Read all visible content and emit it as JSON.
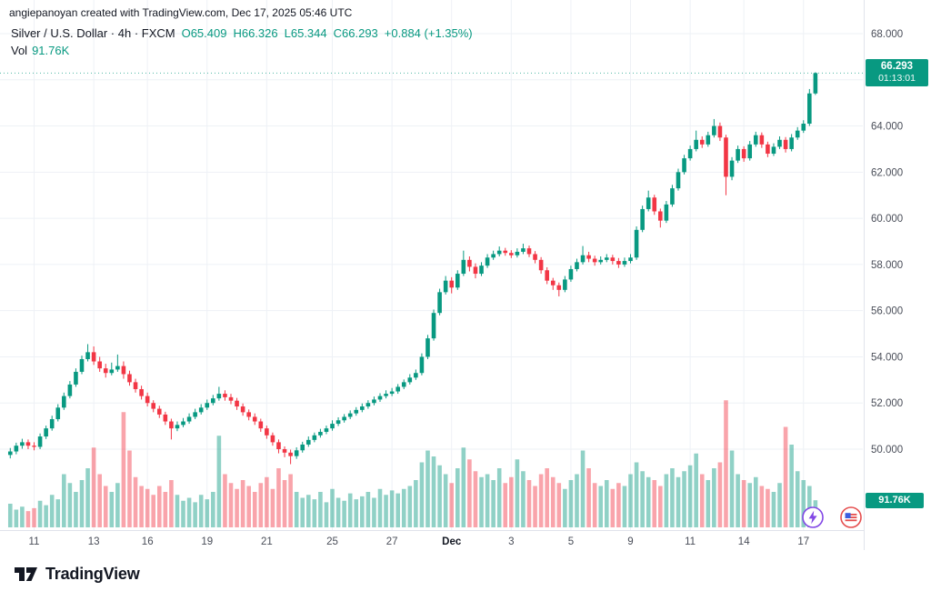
{
  "attribution": "angiepanoyan created with TradingView.com, Dec 17, 2025 05:46 UTC",
  "legend": {
    "symbol": "Silver / U.S. Dollar · 4h · FXCM",
    "ohlc": [
      {
        "k": "O",
        "v": "65.409"
      },
      {
        "k": "H",
        "v": "66.326"
      },
      {
        "k": "L",
        "v": "65.344"
      },
      {
        "k": "C",
        "v": "66.293"
      }
    ],
    "change": "+0.884 (+1.35%)",
    "vol_label": "Vol",
    "vol_value": "91.76K"
  },
  "price_label": {
    "value": "66.293",
    "countdown": "01:13:01"
  },
  "volume_label": {
    "value": "91.76K"
  },
  "footer": {
    "logo_text": "TradingView"
  },
  "icons": {
    "lightning": "lightning-icon",
    "flag": "flag-icon"
  },
  "colors": {
    "up": "#089981",
    "down": "#f23645",
    "vol_up": "rgba(8,153,129,0.45)",
    "vol_down": "rgba(242,54,69,0.45)",
    "grid": "#eef1f6",
    "axis_line": "#e0e3eb",
    "axis_text": "#4a4e59",
    "badge": "#089981",
    "text": "#131722",
    "icon_lightning": "#8247e5",
    "icon_flag_red": "#e54d4d",
    "icon_flag_blue": "#3b5fe0"
  },
  "chart_data": {
    "type": "candlestick",
    "title": "Silver / U.S. Dollar, 4h, FXCM",
    "last_price": 66.293,
    "last_volume": 91.76,
    "volume_unit": "K",
    "ylim": [
      48.9,
      68.9
    ],
    "y_ticks": [
      "68.000",
      "66.000",
      "64.000",
      "62.000",
      "60.000",
      "58.000",
      "56.000",
      "54.000",
      "52.000",
      "50.000"
    ],
    "y_tick_values": [
      68,
      66,
      64,
      62,
      60,
      58,
      56,
      54,
      52,
      50
    ],
    "x_ticks": [
      {
        "label": "11",
        "i": 4
      },
      {
        "label": "13",
        "i": 14
      },
      {
        "label": "16",
        "i": 23
      },
      {
        "label": "19",
        "i": 33
      },
      {
        "label": "21",
        "i": 43
      },
      {
        "label": "25",
        "i": 54
      },
      {
        "label": "27",
        "i": 64
      },
      {
        "label": "Dec",
        "i": 74,
        "bold": true
      },
      {
        "label": "3",
        "i": 84
      },
      {
        "label": "5",
        "i": 94
      },
      {
        "label": "9",
        "i": 104
      },
      {
        "label": "11",
        "i": 114
      },
      {
        "label": "14",
        "i": 123
      },
      {
        "label": "17",
        "i": 133
      }
    ],
    "candles": [
      [
        49.75,
        50.05,
        49.6,
        49.9,
        80
      ],
      [
        49.9,
        50.28,
        49.78,
        50.15,
        60
      ],
      [
        50.15,
        50.45,
        50.02,
        50.3,
        70
      ],
      [
        50.3,
        50.42,
        50.0,
        50.15,
        55
      ],
      [
        50.15,
        50.3,
        49.95,
        50.1,
        65
      ],
      [
        50.1,
        50.68,
        50.0,
        50.55,
        90
      ],
      [
        50.55,
        51.02,
        50.44,
        50.9,
        75
      ],
      [
        50.9,
        51.45,
        50.8,
        51.3,
        110
      ],
      [
        51.3,
        51.95,
        51.2,
        51.8,
        95
      ],
      [
        51.8,
        52.45,
        51.7,
        52.3,
        180
      ],
      [
        52.3,
        52.95,
        52.2,
        52.8,
        150
      ],
      [
        52.8,
        53.5,
        52.7,
        53.35,
        120
      ],
      [
        53.35,
        54.05,
        53.25,
        53.9,
        160
      ],
      [
        53.9,
        54.55,
        53.8,
        54.2,
        200
      ],
      [
        54.2,
        54.45,
        53.65,
        53.8,
        270
      ],
      [
        53.8,
        54.0,
        53.35,
        53.5,
        180
      ],
      [
        53.5,
        53.7,
        53.1,
        53.3,
        140
      ],
      [
        53.3,
        53.75,
        53.2,
        53.45,
        120
      ],
      [
        53.45,
        54.1,
        53.35,
        53.6,
        150
      ],
      [
        53.6,
        53.8,
        53.05,
        53.25,
        390
      ],
      [
        53.25,
        53.4,
        52.75,
        52.9,
        260
      ],
      [
        52.9,
        53.05,
        52.45,
        52.6,
        170
      ],
      [
        52.6,
        52.75,
        52.15,
        52.3,
        140
      ],
      [
        52.3,
        52.45,
        51.85,
        52.0,
        130
      ],
      [
        52.0,
        52.12,
        51.6,
        51.75,
        110
      ],
      [
        51.75,
        51.88,
        51.35,
        51.5,
        140
      ],
      [
        51.5,
        51.62,
        51.05,
        51.2,
        120
      ],
      [
        51.2,
        51.32,
        50.42,
        50.9,
        160
      ],
      [
        50.9,
        51.2,
        50.78,
        51.05,
        110
      ],
      [
        51.05,
        51.35,
        50.95,
        51.2,
        90
      ],
      [
        51.2,
        51.55,
        51.1,
        51.4,
        100
      ],
      [
        51.4,
        51.75,
        51.3,
        51.6,
        85
      ],
      [
        51.6,
        51.95,
        51.5,
        51.8,
        110
      ],
      [
        51.8,
        52.15,
        51.7,
        52.0,
        95
      ],
      [
        52.0,
        52.35,
        51.9,
        52.2,
        120
      ],
      [
        52.2,
        52.7,
        52.1,
        52.4,
        310
      ],
      [
        52.4,
        52.55,
        52.1,
        52.25,
        180
      ],
      [
        52.25,
        52.4,
        51.95,
        52.1,
        150
      ],
      [
        52.1,
        52.22,
        51.7,
        51.85,
        130
      ],
      [
        51.85,
        51.98,
        51.45,
        51.6,
        160
      ],
      [
        51.6,
        51.72,
        51.25,
        51.4,
        140
      ],
      [
        51.4,
        51.55,
        51.05,
        51.2,
        120
      ],
      [
        51.2,
        51.32,
        50.75,
        50.9,
        150
      ],
      [
        50.9,
        51.02,
        50.45,
        50.6,
        170
      ],
      [
        50.6,
        50.72,
        50.15,
        50.3,
        130
      ],
      [
        50.3,
        50.42,
        49.82,
        50.0,
        200
      ],
      [
        50.0,
        50.12,
        49.65,
        49.85,
        160
      ],
      [
        49.85,
        49.98,
        49.35,
        49.7,
        180
      ],
      [
        49.7,
        50.08,
        49.58,
        49.95,
        120
      ],
      [
        49.95,
        50.32,
        49.85,
        50.2,
        100
      ],
      [
        50.2,
        50.55,
        50.1,
        50.4,
        110
      ],
      [
        50.4,
        50.72,
        50.3,
        50.6,
        95
      ],
      [
        50.6,
        50.88,
        50.5,
        50.75,
        120
      ],
      [
        50.75,
        51.02,
        50.65,
        50.9,
        85
      ],
      [
        50.9,
        51.25,
        50.8,
        51.1,
        130
      ],
      [
        51.1,
        51.38,
        51.0,
        51.25,
        100
      ],
      [
        51.25,
        51.52,
        51.15,
        51.4,
        90
      ],
      [
        51.4,
        51.68,
        51.3,
        51.55,
        115
      ],
      [
        51.55,
        51.82,
        51.45,
        51.7,
        95
      ],
      [
        51.7,
        51.98,
        51.6,
        51.85,
        105
      ],
      [
        51.85,
        52.12,
        51.75,
        52.0,
        120
      ],
      [
        52.0,
        52.28,
        51.9,
        52.15,
        100
      ],
      [
        52.15,
        52.42,
        52.05,
        52.3,
        130
      ],
      [
        52.3,
        52.55,
        52.2,
        52.4,
        110
      ],
      [
        52.4,
        52.65,
        52.3,
        52.5,
        125
      ],
      [
        52.5,
        52.82,
        52.4,
        52.7,
        115
      ],
      [
        52.7,
        53.02,
        52.6,
        52.9,
        130
      ],
      [
        52.9,
        53.25,
        52.8,
        53.1,
        140
      ],
      [
        53.1,
        53.45,
        53.0,
        53.3,
        160
      ],
      [
        53.3,
        54.15,
        53.2,
        54.0,
        220
      ],
      [
        54.0,
        54.95,
        53.9,
        54.8,
        260
      ],
      [
        54.8,
        56.05,
        54.7,
        55.9,
        240
      ],
      [
        55.9,
        56.95,
        55.8,
        56.8,
        210
      ],
      [
        56.8,
        57.5,
        56.7,
        57.3,
        180
      ],
      [
        57.3,
        57.45,
        56.75,
        57.0,
        150
      ],
      [
        57.0,
        57.75,
        56.9,
        57.6,
        200
      ],
      [
        57.6,
        58.6,
        57.5,
        58.2,
        270
      ],
      [
        58.2,
        58.35,
        57.7,
        57.9,
        230
      ],
      [
        57.9,
        58.05,
        57.4,
        57.6,
        190
      ],
      [
        57.6,
        58.1,
        57.5,
        57.95,
        170
      ],
      [
        57.95,
        58.45,
        57.85,
        58.3,
        180
      ],
      [
        58.3,
        58.6,
        58.2,
        58.45,
        160
      ],
      [
        58.45,
        58.78,
        58.35,
        58.6,
        200
      ],
      [
        58.6,
        58.72,
        58.38,
        58.5,
        150
      ],
      [
        58.5,
        58.62,
        58.28,
        58.4,
        170
      ],
      [
        58.4,
        58.7,
        58.3,
        58.55,
        230
      ],
      [
        58.55,
        58.9,
        58.45,
        58.7,
        190
      ],
      [
        58.7,
        58.82,
        58.32,
        58.45,
        160
      ],
      [
        58.45,
        58.58,
        58.05,
        58.2,
        140
      ],
      [
        58.2,
        58.32,
        57.6,
        57.75,
        180
      ],
      [
        57.75,
        57.88,
        57.15,
        57.3,
        200
      ],
      [
        57.3,
        57.42,
        56.9,
        57.1,
        170
      ],
      [
        57.1,
        57.22,
        56.62,
        56.9,
        150
      ],
      [
        56.9,
        57.5,
        56.8,
        57.35,
        130
      ],
      [
        57.35,
        57.95,
        57.25,
        57.8,
        160
      ],
      [
        57.8,
        58.25,
        57.7,
        58.1,
        180
      ],
      [
        58.1,
        58.8,
        58.0,
        58.4,
        260
      ],
      [
        58.4,
        58.55,
        58.1,
        58.25,
        200
      ],
      [
        58.25,
        58.38,
        57.95,
        58.1,
        150
      ],
      [
        58.1,
        58.35,
        58.0,
        58.2,
        140
      ],
      [
        58.2,
        58.45,
        58.1,
        58.3,
        160
      ],
      [
        58.3,
        58.42,
        58.0,
        58.15,
        130
      ],
      [
        58.15,
        58.28,
        57.85,
        58.0,
        150
      ],
      [
        58.0,
        58.3,
        57.9,
        58.15,
        140
      ],
      [
        58.15,
        58.45,
        58.05,
        58.3,
        180
      ],
      [
        58.3,
        59.65,
        58.2,
        59.5,
        220
      ],
      [
        59.5,
        60.55,
        59.4,
        60.4,
        190
      ],
      [
        60.4,
        61.2,
        60.3,
        60.9,
        170
      ],
      [
        60.9,
        61.02,
        60.15,
        60.3,
        160
      ],
      [
        60.3,
        60.42,
        59.6,
        59.9,
        140
      ],
      [
        59.9,
        60.75,
        59.8,
        60.6,
        180
      ],
      [
        60.6,
        61.45,
        60.5,
        61.3,
        200
      ],
      [
        61.3,
        62.15,
        61.2,
        62.0,
        170
      ],
      [
        62.0,
        62.75,
        61.9,
        62.6,
        190
      ],
      [
        62.6,
        63.15,
        62.5,
        63.0,
        210
      ],
      [
        63.0,
        63.8,
        62.9,
        63.4,
        250
      ],
      [
        63.4,
        63.55,
        63.05,
        63.2,
        180
      ],
      [
        63.2,
        63.75,
        63.1,
        63.6,
        160
      ],
      [
        63.6,
        64.3,
        63.5,
        64.0,
        200
      ],
      [
        64.0,
        64.15,
        63.35,
        63.5,
        220
      ],
      [
        63.5,
        63.62,
        61.0,
        61.8,
        430
      ],
      [
        61.8,
        62.65,
        61.65,
        62.5,
        260
      ],
      [
        62.5,
        63.15,
        62.4,
        63.0,
        180
      ],
      [
        63.0,
        63.12,
        62.45,
        62.6,
        160
      ],
      [
        62.6,
        63.35,
        62.5,
        63.2,
        150
      ],
      [
        63.2,
        63.75,
        63.1,
        63.6,
        170
      ],
      [
        63.6,
        63.72,
        63.05,
        63.2,
        140
      ],
      [
        63.2,
        63.32,
        62.65,
        62.8,
        130
      ],
      [
        62.8,
        63.25,
        62.7,
        63.1,
        120
      ],
      [
        63.1,
        63.55,
        63.0,
        63.4,
        150
      ],
      [
        63.4,
        63.52,
        62.85,
        63.0,
        340
      ],
      [
        63.0,
        63.65,
        62.9,
        63.5,
        280
      ],
      [
        63.5,
        63.95,
        63.4,
        63.8,
        190
      ],
      [
        63.8,
        64.25,
        63.7,
        64.1,
        160
      ],
      [
        64.1,
        65.6,
        64.0,
        65.41,
        140
      ],
      [
        65.409,
        66.326,
        65.344,
        66.293,
        91.76
      ]
    ]
  }
}
